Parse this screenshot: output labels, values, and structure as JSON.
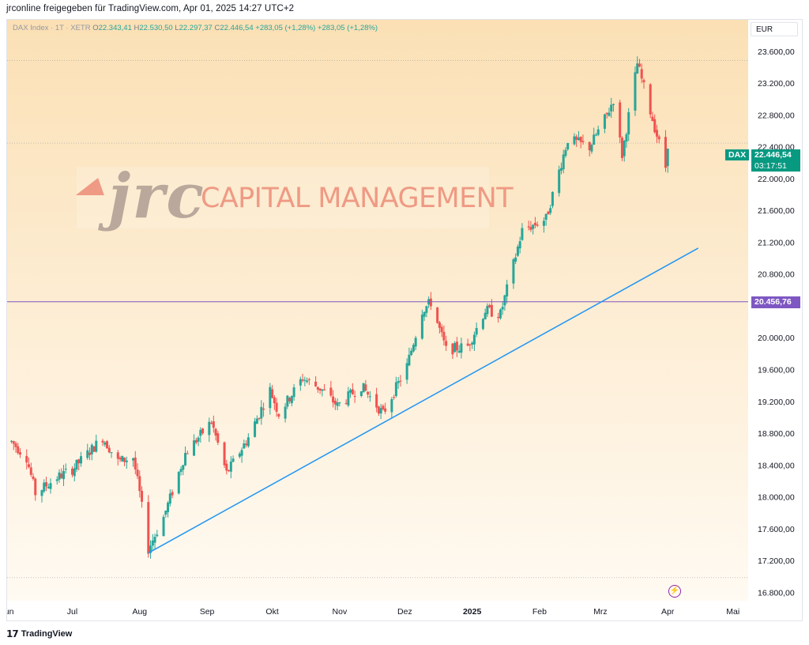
{
  "share_text": "jrconline freigegeben für TradingView.com, Apr 01, 2025 14:27 UTC+2",
  "legend": {
    "symbol": "DAX Index · 1T · XETR",
    "o_label": "O",
    "o": "22.343,41",
    "h_label": "H",
    "h": "22.530,50",
    "l_label": "L",
    "l": "22.297,37",
    "c_label": "C",
    "c": "22.446,54",
    "change1": "+283,05 (+1,28%)",
    "change2": "+283,05 (+1,28%)"
  },
  "currency_button": "EUR",
  "watermark": {
    "brand": "jrc",
    "text": "CAPITAL MANAGEMENT"
  },
  "badges": {
    "dax_label": "DAX",
    "dax_price": "22.446,54",
    "countdown": "03:17:51",
    "level_price": "20.456,76"
  },
  "footer_brand": "TradingView",
  "icons": {
    "logo": "tradingview-logo-icon",
    "bolt": "lightning-icon"
  },
  "colors": {
    "up": "#26a69a",
    "down": "#ef5350",
    "trend_line": "#2196f3",
    "level_line": "#7e57c2",
    "badge_dax": "#089981",
    "badge_level": "#7e57c2",
    "bg_top": "#fbe0b5",
    "bg_bottom": "#fffaf2"
  },
  "chart_data": {
    "type": "candlestick",
    "title": "",
    "y_ticks": [
      "23.600,00",
      "23.200,00",
      "22.800,00",
      "22.400,00",
      "22.000,00",
      "21.600,00",
      "21.200,00",
      "20.800,00",
      "20.000,00",
      "19.600,00",
      "19.200,00",
      "18.800,00",
      "18.400,00",
      "18.000,00",
      "17.600,00",
      "17.200,00",
      "16.800,00"
    ],
    "y_tick_values": [
      23600,
      23200,
      22800,
      22400,
      22000,
      21600,
      21200,
      20800,
      20000,
      19600,
      19200,
      18800,
      18400,
      18000,
      17600,
      17200,
      16800
    ],
    "x_ticks": [
      "Jun",
      "Jul",
      "Aug",
      "Sep",
      "Okt",
      "Nov",
      "Dez",
      "2025",
      "Feb",
      "Mrz",
      "Apr",
      "Mai"
    ],
    "x_tick_dates": [
      "2024-06-01",
      "2024-07-01",
      "2024-08-01",
      "2024-09-01",
      "2024-10-01",
      "2024-11-01",
      "2024-12-01",
      "2025-01-01",
      "2025-02-01",
      "2025-03-01",
      "2025-04-01",
      "2025-05-01"
    ],
    "ylim": [
      16700,
      24000
    ],
    "xlim": [
      "2024-06-01",
      "2025-05-08"
    ],
    "horizontal_level": 20456.76,
    "current_price": 22446.54,
    "dotted_levels": [
      23490,
      22450,
      16990
    ],
    "trend_line": {
      "from": {
        "date": "2024-08-05",
        "value": 17300
      },
      "to": {
        "date": "2025-04-15",
        "value": 21130
      }
    },
    "anchors": [
      {
        "date": "2024-06-03",
        "value": 18700
      },
      {
        "date": "2024-06-10",
        "value": 18500
      },
      {
        "date": "2024-06-14",
        "value": 18050
      },
      {
        "date": "2024-06-24",
        "value": 18250
      },
      {
        "date": "2024-07-01",
        "value": 18350
      },
      {
        "date": "2024-07-15",
        "value": 18750
      },
      {
        "date": "2024-07-22",
        "value": 18450
      },
      {
        "date": "2024-07-29",
        "value": 18500
      },
      {
        "date": "2024-08-01",
        "value": 18050
      },
      {
        "date": "2024-08-05",
        "value": 17350
      },
      {
        "date": "2024-08-12",
        "value": 17750
      },
      {
        "date": "2024-08-22",
        "value": 18550
      },
      {
        "date": "2024-09-03",
        "value": 18950
      },
      {
        "date": "2024-09-10",
        "value": 18300
      },
      {
        "date": "2024-09-20",
        "value": 18750
      },
      {
        "date": "2024-09-30",
        "value": 19350
      },
      {
        "date": "2024-10-04",
        "value": 19050
      },
      {
        "date": "2024-10-15",
        "value": 19500
      },
      {
        "date": "2024-10-24",
        "value": 19350
      },
      {
        "date": "2024-10-31",
        "value": 19150
      },
      {
        "date": "2024-11-11",
        "value": 19400
      },
      {
        "date": "2024-11-21",
        "value": 19050
      },
      {
        "date": "2024-12-02",
        "value": 19650
      },
      {
        "date": "2024-12-09",
        "value": 20350
      },
      {
        "date": "2024-12-13",
        "value": 20450
      },
      {
        "date": "2024-12-20",
        "value": 19850
      },
      {
        "date": "2024-12-30",
        "value": 19900
      },
      {
        "date": "2025-01-07",
        "value": 20350
      },
      {
        "date": "2025-01-14",
        "value": 20300
      },
      {
        "date": "2025-01-24",
        "value": 21350
      },
      {
        "date": "2025-02-04",
        "value": 21500
      },
      {
        "date": "2025-02-14",
        "value": 22500
      },
      {
        "date": "2025-02-24",
        "value": 22400
      },
      {
        "date": "2025-03-04",
        "value": 22800
      },
      {
        "date": "2025-03-07",
        "value": 23000
      },
      {
        "date": "2025-03-11",
        "value": 22300
      },
      {
        "date": "2025-03-18",
        "value": 23450
      },
      {
        "date": "2025-03-24",
        "value": 22850
      },
      {
        "date": "2025-03-28",
        "value": 22450
      },
      {
        "date": "2025-03-31",
        "value": 22150
      },
      {
        "date": "2025-04-01",
        "value": 22446
      }
    ]
  }
}
